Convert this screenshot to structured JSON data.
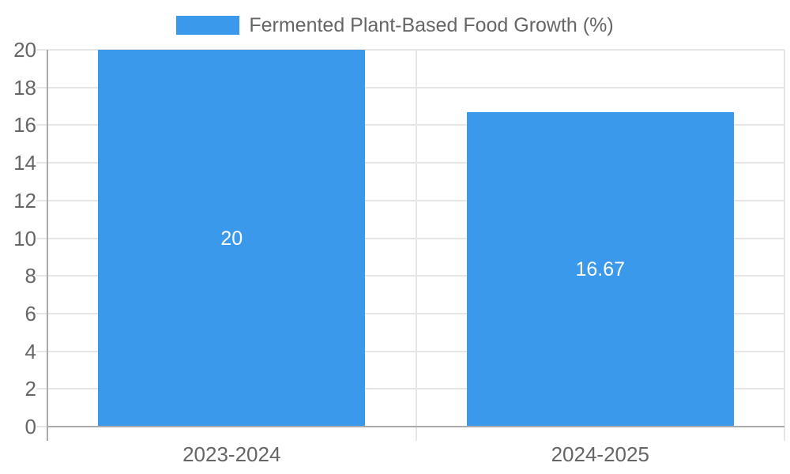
{
  "chart_data": {
    "type": "bar",
    "title": "Fermented Plant-Based Food Growth (%)",
    "legend_position": "top",
    "categories": [
      "2023-2024",
      "2024-2025"
    ],
    "values": [
      20,
      16.67
    ],
    "bar_labels": [
      "20",
      "16.67"
    ],
    "xlabel": "",
    "ylabel": "",
    "ylim": [
      0,
      20
    ],
    "ytick_step": 2,
    "ytick_labels": [
      "0",
      "2",
      "4",
      "6",
      "8",
      "10",
      "12",
      "14",
      "16",
      "18",
      "20"
    ],
    "grid": true,
    "colors": {
      "bar": "#3b99ec",
      "grid": "#e5e5e5",
      "axis": "#ababab",
      "tick_text": "#666666",
      "bar_label_text": "#ffffff",
      "background": "#ffffff"
    }
  }
}
